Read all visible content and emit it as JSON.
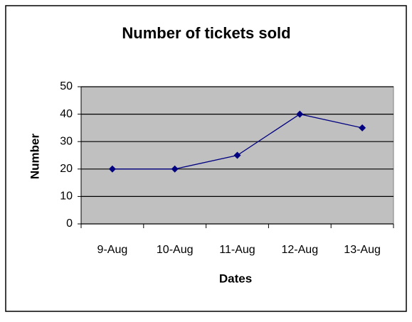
{
  "chart_data": {
    "type": "line",
    "title": "Number of tickets sold",
    "x_label": "Dates",
    "y_label": "Number",
    "categories": [
      "9-Aug",
      "10-Aug",
      "11-Aug",
      "12-Aug",
      "13-Aug"
    ],
    "series": [
      {
        "name": "Number",
        "color": "#000080",
        "values": [
          20,
          20,
          25,
          40,
          35
        ]
      }
    ],
    "ylim": [
      0,
      50
    ],
    "yticks": [
      0,
      10,
      20,
      30,
      40,
      50
    ],
    "grid": true
  }
}
